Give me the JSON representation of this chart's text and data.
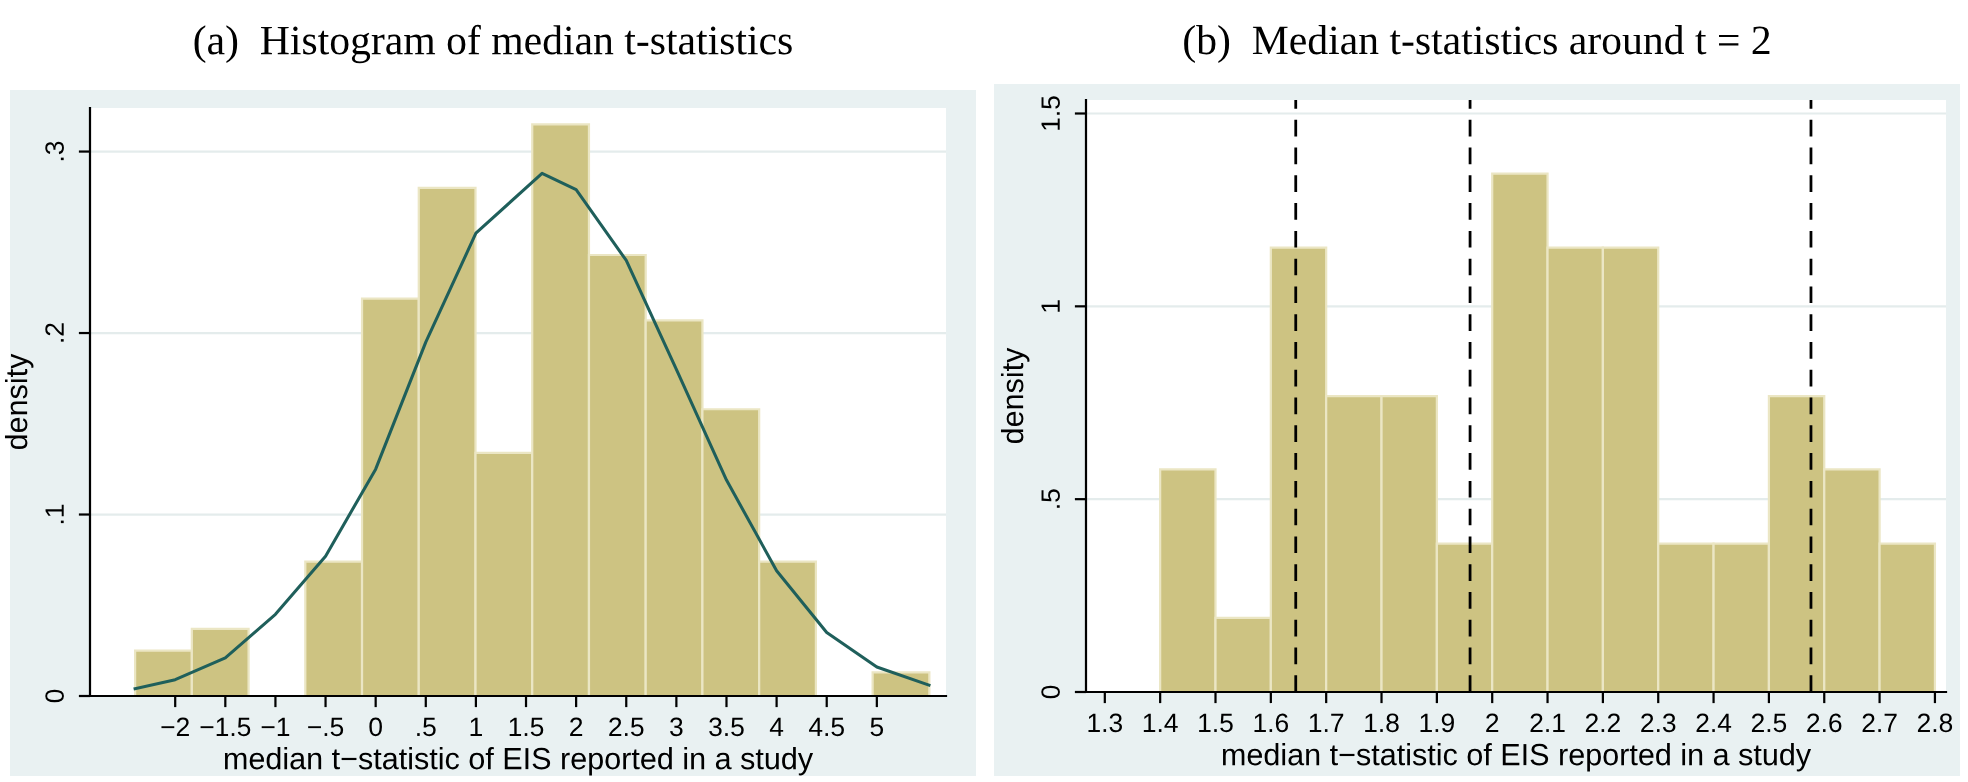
{
  "chart_data": [
    {
      "type": "histogram",
      "title": "(a)  Histogram of median t-statistics",
      "xlabel": "median t−statistic of EIS reported in a study",
      "ylabel": "density",
      "bins": [
        -2.4,
        -1.834,
        -1.268,
        -0.702,
        -0.136,
        0.43,
        0.996,
        1.562,
        2.128,
        2.694,
        3.26,
        3.826,
        4.392,
        4.958,
        5.524
      ],
      "values": [
        0.025,
        0.037,
        0,
        0.074,
        0.219,
        0.28,
        0.134,
        0.315,
        0.243,
        0.207,
        0.158,
        0.074,
        0,
        0.013
      ],
      "color": "#cdc382",
      "series": [
        {
          "type": "line",
          "color": "#1f5f5b",
          "x": [
            -2.4,
            -2,
            -1.5,
            -1,
            -0.5,
            0,
            0.5,
            1,
            1.66,
            2,
            2.5,
            3,
            3.5,
            4,
            4.5,
            5,
            5.52
          ],
          "values": [
            0.004,
            0.009,
            0.021,
            0.045,
            0.077,
            0.125,
            0.195,
            0.255,
            0.288,
            0.279,
            0.24,
            0.18,
            0.119,
            0.069,
            0.035,
            0.016,
            0.006
          ]
        }
      ],
      "xlim": [
        -2.85,
        5.69
      ],
      "ylim": [
        0,
        0.324
      ],
      "xticks": [
        {
          "value": -2,
          "label": "−2"
        },
        {
          "value": -1.5,
          "label": "−1.5"
        },
        {
          "value": -1,
          "label": "−1"
        },
        {
          "value": -0.5,
          "label": "−.5"
        },
        0,
        {
          "value": 0.5,
          "label": ".5"
        },
        1,
        1.5,
        2,
        2.5,
        3,
        3.5,
        4,
        4.5,
        5
      ],
      "yticks": [
        0,
        {
          "value": 0.1,
          "label": ".1"
        },
        {
          "value": 0.2,
          "label": ".2"
        },
        {
          "value": 0.3,
          "label": ".3"
        }
      ],
      "grid": "y"
    },
    {
      "type": "histogram",
      "title": "(b)  Median t-statistics around t = 2",
      "xlabel": "median t−statistic of EIS reported in a study",
      "ylabel": "density",
      "bins": [
        1.4,
        1.5,
        1.6,
        1.7,
        1.8,
        1.9,
        2.0,
        2.1,
        2.2,
        2.3,
        2.4,
        2.5,
        2.6,
        2.7,
        2.8
      ],
      "values": [
        0.577,
        0.192,
        1.152,
        0.767,
        0.767,
        0.385,
        1.344,
        1.152,
        1.152,
        0.385,
        0.385,
        0.767,
        0.577,
        0.385
      ],
      "color": "#cdc382",
      "ref_lines": [
        {
          "axis": "x",
          "value": 1.645,
          "color": "#000000",
          "line_style": "dashed"
        },
        {
          "axis": "x",
          "value": 1.96,
          "color": "#000000",
          "line_style": "dashed"
        },
        {
          "axis": "x",
          "value": 2.576,
          "color": "#000000",
          "line_style": "dashed"
        }
      ],
      "xlim": [
        1.266,
        2.82
      ],
      "ylim": [
        0,
        1.535
      ],
      "xticks": [
        1.3,
        1.4,
        1.5,
        1.6,
        1.7,
        1.8,
        1.9,
        2,
        2.1,
        2.2,
        2.3,
        2.4,
        2.5,
        2.6,
        2.7,
        2.8
      ],
      "yticks": [
        0,
        {
          "value": 0.5,
          "label": ".5"
        },
        1,
        1.5
      ],
      "grid": "y"
    }
  ]
}
